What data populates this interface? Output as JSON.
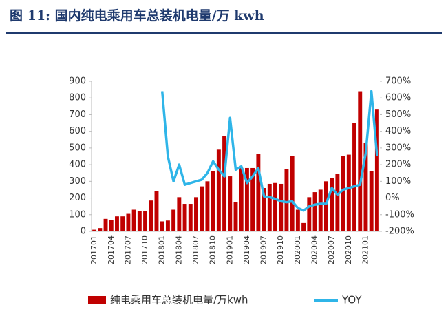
{
  "chart_data": {
    "type": "bar_line",
    "title": "图 11:  国内纯电乘用车总装机电量/万 kwh",
    "categories": [
      "201701",
      null,
      null,
      "201704",
      null,
      null,
      "201707",
      null,
      null,
      "201710",
      null,
      null,
      "201801",
      null,
      null,
      "201804",
      null,
      null,
      "201807",
      null,
      null,
      "201810",
      null,
      null,
      "201901",
      null,
      null,
      "201904",
      null,
      null,
      "201907",
      null,
      null,
      "201910",
      null,
      null,
      "202001",
      null,
      null,
      "202004",
      null,
      null,
      "202007",
      null,
      null,
      "202010",
      null,
      null,
      "202101",
      null,
      null
    ],
    "series": [
      {
        "name": "纯电乘用车总装机电量/万kwh",
        "color": "#c00000",
        "type": "bar",
        "values": [
          10,
          20,
          75,
          70,
          90,
          90,
          105,
          130,
          120,
          120,
          185,
          240,
          60,
          65,
          130,
          205,
          165,
          165,
          205,
          270,
          300,
          360,
          490,
          570,
          330,
          175,
          380,
          380,
          380,
          465,
          260,
          285,
          290,
          285,
          375,
          450,
          130,
          50,
          205,
          235,
          250,
          300,
          320,
          345,
          450,
          460,
          650,
          840,
          530,
          360,
          730
        ]
      },
      {
        "name": "YOY",
        "color": "#2fb5e8",
        "type": "line",
        "axis": "y2",
        "values": [
          null,
          null,
          null,
          null,
          null,
          null,
          null,
          null,
          null,
          null,
          null,
          null,
          640,
          250,
          100,
          200,
          80,
          90,
          100,
          110,
          150,
          220,
          170,
          130,
          480,
          170,
          190,
          90,
          130,
          180,
          10,
          5,
          -5,
          -20,
          -25,
          -20,
          -60,
          -75,
          -50,
          -40,
          -35,
          -35,
          60,
          20,
          50,
          60,
          70,
          80,
          270,
          640,
          250
        ]
      }
    ],
    "ylim": [
      0,
      900
    ],
    "yticks": [
      0,
      100,
      200,
      300,
      400,
      500,
      600,
      700,
      800,
      900
    ],
    "y2lim": [
      -200,
      700
    ],
    "y2ticks": [
      {
        "value": -200,
        "label": "-200%"
      },
      {
        "value": -100,
        "label": "-100%"
      },
      {
        "value": 0,
        "label": "0%"
      },
      {
        "value": 100,
        "label": "100%"
      },
      {
        "value": 200,
        "label": "200%"
      },
      {
        "value": 300,
        "label": "300%"
      },
      {
        "value": 400,
        "label": "400%"
      },
      {
        "value": 500,
        "label": "500%"
      },
      {
        "value": 600,
        "label": "600%"
      },
      {
        "value": 700,
        "label": "700%"
      }
    ],
    "legend": "bottom"
  }
}
